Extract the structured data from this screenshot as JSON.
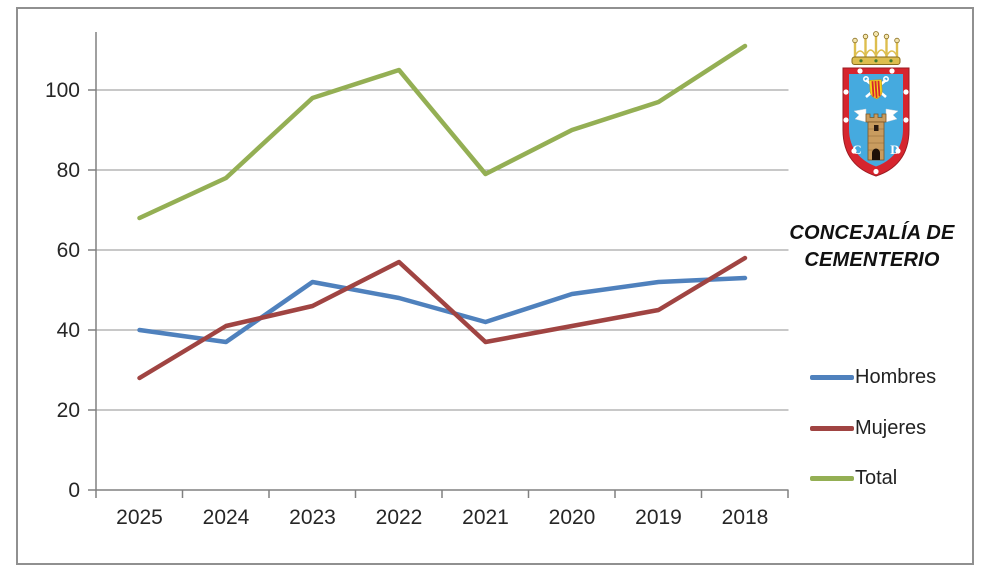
{
  "chart_label": {
    "line1": "CONCEJALÍA DE",
    "line2": "CEMENTERIO"
  },
  "chart_data": {
    "type": "line",
    "categories": [
      "2025",
      "2024",
      "2023",
      "2022",
      "2021",
      "2020",
      "2019",
      "2018"
    ],
    "series": [
      {
        "name": "Hombres",
        "color": "#4F81BD",
        "values": [
          40,
          37,
          52,
          48,
          42,
          49,
          52,
          53
        ]
      },
      {
        "name": "Mujeres",
        "color": "#A04442",
        "values": [
          28,
          41,
          46,
          57,
          37,
          41,
          45,
          58
        ]
      },
      {
        "name": "Total",
        "color": "#94AF54",
        "values": [
          68,
          78,
          98,
          105,
          79,
          90,
          97,
          111
        ]
      }
    ],
    "ylim": [
      0,
      115
    ],
    "yticks": [
      0,
      20,
      40,
      60,
      80,
      100
    ],
    "grid": true,
    "legend_position": "right"
  },
  "colors": {
    "gridline": "#A8A8A8",
    "axis": "#808080",
    "frame": "#909090",
    "label_text": "#262626"
  },
  "crest": {
    "name": "escudo-municipal",
    "letters": {
      "left": "C",
      "right": "D"
    }
  }
}
